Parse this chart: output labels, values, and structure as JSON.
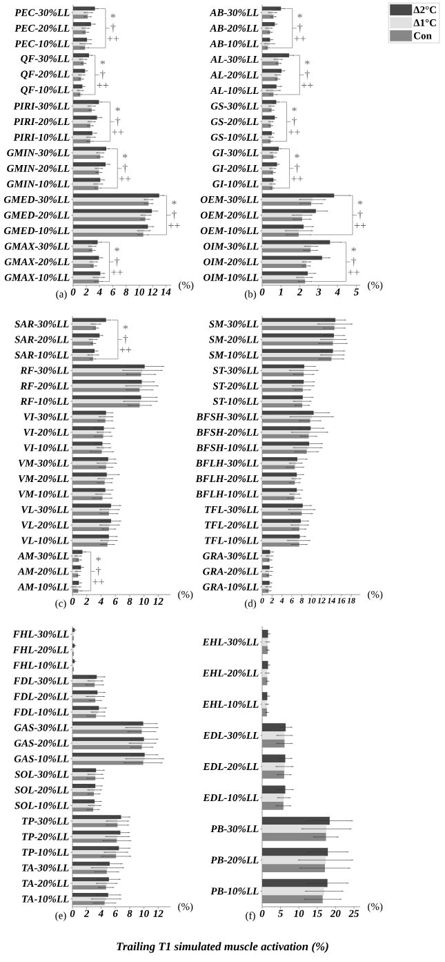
{
  "chart_data": [
    {
      "type": "bar",
      "orientation": "horizontal",
      "title": "(a)",
      "xlabel": "(%)",
      "categories": [
        "PEC-30%LL",
        "PEC-20%LL",
        "PEC-10%LL",
        "QF-30%LL",
        "QF-20%LL",
        "QF-10%LL",
        "PIRI-30%LL",
        "PIRI-20%LL",
        "PIRI-10%LL",
        "GMIN-30%LL",
        "GMIN-20%LL",
        "GMIN-10%LL",
        "GMED-30%LL",
        "GMED-20%LL",
        "GMED-10%LL",
        "GMAX-30%LL",
        "GMAX-20%LL",
        "GMAX-10%LL"
      ],
      "series": [
        {
          "color": "#474747",
          "values": [
            3.3,
            2.7,
            2.1,
            2.4,
            1.8,
            1.4,
            3.9,
            3.6,
            2.9,
            5.0,
            4.9,
            4.1,
            13.0,
            11.9,
            11.3,
            3.7,
            3.9,
            4.1
          ],
          "errors": [
            0.5,
            0.6,
            0.6,
            0.5,
            0.3,
            0.3,
            0.5,
            0.7,
            0.6,
            0.5,
            0.6,
            0.6,
            0.7,
            0.8,
            0.8,
            0.6,
            0.5,
            0.6
          ]
        },
        {
          "color": "#e1e1e1",
          "values": [
            2.3,
            1.9,
            1.9,
            1.5,
            1.3,
            1.1,
            2.8,
            2.8,
            2.7,
            4.1,
            3.9,
            3.8,
            11.4,
            11.0,
            10.7,
            2.9,
            3.1,
            3.9
          ],
          "errors": [
            0.6,
            0.5,
            0.8,
            0.5,
            0.4,
            0.4,
            0.5,
            0.5,
            0.6,
            0.5,
            0.5,
            0.6,
            0.6,
            0.7,
            0.9,
            0.5,
            0.5,
            0.8
          ]
        },
        {
          "color": "#878787",
          "values": [
            2.2,
            1.9,
            1.8,
            1.6,
            1.2,
            1.1,
            2.8,
            2.6,
            2.6,
            4.1,
            3.9,
            3.8,
            11.4,
            10.9,
            10.6,
            2.9,
            3.1,
            3.9
          ],
          "errors": [
            0.5,
            0.4,
            0.6,
            0.3,
            0.3,
            0.3,
            0.4,
            0.4,
            0.5,
            0.4,
            0.4,
            0.5,
            0.6,
            0.6,
            0.8,
            0.4,
            0.4,
            0.6
          ]
        }
      ],
      "xlim": [
        0,
        14.8
      ],
      "xticks": [
        0,
        2,
        4,
        6,
        8,
        10,
        12,
        14
      ],
      "annotations": [
        "*",
        "†",
        "++",
        "*",
        "†",
        "++",
        "*",
        "†",
        "++",
        "*",
        "†",
        "++",
        "*",
        "†",
        "++",
        "*",
        "†",
        "++"
      ]
    },
    {
      "type": "bar",
      "orientation": "horizontal",
      "title": "(b)",
      "xlabel": "(%)",
      "legend": "top right",
      "categories": [
        "AB-30%LL",
        "AB-20%LL",
        "AB-10%LL",
        "AL-30%LL",
        "AL-20%LL",
        "AL-10%LL",
        "GS-30%LL",
        "GS-20%LL",
        "GS-10%LL",
        "GI-30%LL",
        "GI-20%LL",
        "GI-10%LL",
        "OEM-30%LL",
        "OEM-20%LL",
        "OEM-10%LL",
        "OIM-30%LL",
        "OIM-20%LL",
        "OIM-10%LL"
      ],
      "series": [
        {
          "name": "Δ2°C",
          "color": "#474747",
          "values": [
            1.0,
            0.67,
            0.42,
            1.43,
            1.03,
            0.76,
            0.75,
            0.67,
            0.51,
            0.88,
            0.79,
            0.6,
            3.82,
            2.85,
            2.2,
            3.6,
            3.18,
            2.42
          ],
          "errors": [
            0.2,
            0.1,
            0.12,
            0.25,
            0.15,
            0.25,
            0.15,
            0.1,
            0.1,
            0.15,
            0.1,
            0.1,
            0.85,
            0.6,
            0.5,
            0.6,
            0.4,
            0.4
          ]
        },
        {
          "name": "Δ1°C",
          "color": "#e1e1e1",
          "values": [
            0.55,
            0.36,
            0.39,
            0.85,
            0.83,
            0.6,
            0.5,
            0.47,
            0.47,
            0.6,
            0.56,
            0.55,
            2.67,
            2.12,
            1.95,
            2.6,
            2.36,
            2.25
          ],
          "errors": [
            0.2,
            0.15,
            0.25,
            0.2,
            0.12,
            0.35,
            0.12,
            0.1,
            0.1,
            0.15,
            0.14,
            0.12,
            0.67,
            0.5,
            0.7,
            0.33,
            0.2,
            0.4
          ]
        },
        {
          "name": "Con",
          "color": "#878787",
          "values": [
            0.6,
            0.42,
            0.3,
            0.87,
            0.82,
            0.6,
            0.5,
            0.46,
            0.45,
            0.6,
            0.58,
            0.55,
            2.6,
            2.12,
            1.94,
            2.57,
            2.34,
            2.28
          ],
          "errors": [
            0.12,
            0.1,
            0.1,
            0.12,
            0.1,
            0.2,
            0.1,
            0.08,
            0.08,
            0.1,
            0.1,
            0.1,
            0.58,
            0.45,
            0.65,
            0.35,
            0.2,
            0.35
          ]
        }
      ],
      "xlim": [
        0,
        5.2
      ],
      "xticks": [
        0,
        1,
        2,
        3,
        4,
        5
      ],
      "annotations": [
        "*",
        "†",
        "++",
        "*",
        "†",
        "++",
        "*",
        "†",
        "++",
        "*",
        "†",
        "++",
        "*",
        "†",
        "++",
        "*",
        "†",
        "++"
      ]
    },
    {
      "type": "bar",
      "orientation": "horizontal",
      "title": "(c)",
      "xlabel": "(%)",
      "categories": [
        "SAR-30%LL",
        "SAR-20%LL",
        "SAR-10%LL",
        "RF-30%LL",
        "RF-20%LL",
        "RF-10%LL",
        "VI-30%LL",
        "VI-20%LL",
        "VI-10%LL",
        "VM-30%LL",
        "VM-20%LL",
        "VM-10%LL",
        "VL-30%LL",
        "VL-20%LL",
        "VL-10%LL",
        "AM-30%LL",
        "AM-20%LL",
        "AM-10%LL"
      ],
      "series": [
        {
          "color": "#474747",
          "values": [
            4.7,
            3.8,
            3.1,
            10.1,
            9.7,
            9.6,
            4.7,
            4.4,
            4.2,
            5.0,
            4.8,
            4.6,
            5.4,
            5.4,
            5.1,
            1.4,
            1.2,
            0.9
          ],
          "errors": [
            0.6,
            0.4,
            0.4,
            2.6,
            1.7,
            2.2,
            0.9,
            1.4,
            1.0,
            1.0,
            1.7,
            1.0,
            1.3,
            1.3,
            1.1,
            0.4,
            0.3,
            0.3
          ]
        },
        {
          "color": "#e1e1e1",
          "values": [
            3.3,
            2.9,
            2.9,
            9.8,
            9.7,
            9.5,
            4.7,
            4.4,
            4.4,
            4.8,
            4.6,
            4.3,
            5.2,
            5.2,
            5.1,
            0.8,
            0.8,
            0.6
          ],
          "errors": [
            0.6,
            0.5,
            0.7,
            2.7,
            2.2,
            2.3,
            0.9,
            0.9,
            0.9,
            1.3,
            1.0,
            1.0,
            1.3,
            1.3,
            1.1,
            0.4,
            0.3,
            0.5
          ]
        },
        {
          "color": "#878787",
          "values": [
            3.3,
            2.9,
            2.9,
            9.6,
            9.4,
            9.4,
            4.6,
            4.3,
            4.1,
            4.7,
            4.5,
            4.2,
            5.1,
            5.1,
            4.9,
            0.9,
            0.8,
            0.8
          ],
          "errors": [
            0.3,
            0.3,
            0.4,
            2.0,
            1.8,
            1.6,
            1.0,
            1.2,
            1.6,
            0.9,
            1.0,
            1.3,
            1.2,
            0.9,
            0.9,
            0.3,
            0.2,
            0.5
          ]
        }
      ],
      "xlim": [
        0,
        13.7
      ],
      "xticks": [
        0,
        2,
        4,
        6,
        8,
        10,
        12
      ],
      "annotations": [
        "*",
        "†",
        "++",
        {
          "text": "*",
          "x": 1.4,
          "y": "AM-30%LL"
        },
        "†",
        {
          "text": "++",
          "x": 0.8,
          "y": "AM-10%LL"
        }
      ]
    },
    {
      "type": "bar",
      "orientation": "horizontal",
      "title": "(d)",
      "xlabel": "(%)",
      "categories": [
        "SM-30%LL",
        "SM-20%LL",
        "SM-10%LL",
        "ST-30%LL",
        "ST-20%LL",
        "ST-10%LL",
        "BFSH-30%LL",
        "BFSH-20%LL",
        "BFSH-10%LL",
        "BFLH-30%LL",
        "BFLH-20%LL",
        "BFLH-10%LL",
        "TFL-30%LL",
        "TFL-20%LL",
        "TFL-10%LL",
        "GRA-30%LL",
        "GRA-20%LL",
        "GRA-10%LL"
      ],
      "series": [
        {
          "color": "#474747",
          "values": [
            14.8,
            14.5,
            14.3,
            8.5,
            8.4,
            8.2,
            10.4,
            9.8,
            9.5,
            7.1,
            7.0,
            7.0,
            8.2,
            7.8,
            7.6,
            1.6,
            1.5,
            1.5
          ],
          "errors": [
            2.0,
            2.1,
            2.3,
            2.2,
            2.1,
            2.0,
            3.1,
            2.6,
            2.6,
            1.9,
            1.3,
            1.1,
            1.7,
            1.5,
            1.1,
            0.6,
            0.5,
            0.4
          ]
        },
        {
          "color": "#e1e1e1",
          "values": [
            14.7,
            14.4,
            14.2,
            8.4,
            8.3,
            8.1,
            10.0,
            9.6,
            9.2,
            6.8,
            6.9,
            6.6,
            8.0,
            7.6,
            7.4,
            1.5,
            1.4,
            1.3
          ],
          "errors": [
            3.4,
            2.5,
            2.3,
            2.8,
            2.1,
            1.7,
            4.3,
            3.6,
            2.8,
            1.2,
            0.8,
            0.9,
            2.6,
            1.7,
            2.2,
            0.6,
            0.6,
            0.5
          ]
        },
        {
          "color": "#878787",
          "values": [
            14.6,
            14.3,
            14.0,
            8.4,
            8.2,
            8.1,
            9.7,
            9.4,
            9.0,
            6.6,
            6.6,
            6.5,
            8.0,
            7.5,
            7.5,
            1.5,
            1.4,
            1.3
          ],
          "errors": [
            2.1,
            2.8,
            2.4,
            2.0,
            1.5,
            1.4,
            2.1,
            1.6,
            2.3,
            1.7,
            1.0,
            1.3,
            2.1,
            1.3,
            1.5,
            0.4,
            0.4,
            0.4
          ]
        }
      ],
      "xlim": [
        0,
        19.8
      ],
      "xticks": [
        0,
        2,
        4,
        6,
        8,
        10,
        12,
        14,
        16,
        18
      ]
    },
    {
      "type": "bar",
      "orientation": "horizontal",
      "title": "(e)",
      "xlabel": "(%)",
      "categories": [
        "FHL-30%LL",
        "FHL-20%LL",
        "FHL-10%LL",
        "FDL-30%LL",
        "FDL-20%LL",
        "FDL-10%LL",
        "GAS-30%LL",
        "GAS-20%LL",
        "GAS-10%LL",
        "SOL-30%LL",
        "SOL-20%LL",
        "SOL-10%LL",
        "TP-30%LL",
        "TP-20%LL",
        "TP-10%LL",
        "TA-30%LL",
        "TA-20%LL",
        "TA-10%LL"
      ],
      "series": [
        {
          "color": "#474747",
          "values": [
            0.3,
            0.3,
            0.3,
            3.4,
            3.5,
            3.7,
            9.9,
            10.0,
            10.1,
            3.3,
            3.2,
            3.1,
            6.8,
            6.7,
            6.5,
            5.2,
            5.1,
            5.0
          ],
          "errors": [
            0.1,
            0.1,
            0.1,
            1.1,
            1.0,
            1.0,
            1.9,
            1.9,
            1.8,
            1.1,
            0.9,
            0.9,
            1.2,
            1.2,
            1.5,
            1.7,
            1.5,
            1.7
          ]
        },
        {
          "color": "#e1e1e1",
          "values": [
            0.2,
            0.2,
            0.2,
            3.2,
            3.2,
            3.6,
            9.7,
            9.8,
            10.1,
            3.2,
            3.1,
            3.1,
            6.3,
            6.3,
            6.1,
            4.9,
            4.8,
            4.7
          ],
          "errors": [
            null,
            null,
            null,
            1.0,
            1.2,
            0.9,
            2.2,
            1.8,
            2.6,
            1.0,
            0.9,
            0.8,
            1.5,
            1.6,
            1.6,
            2.2,
            1.4,
            2.0
          ]
        },
        {
          "color": "#878787",
          "values": [
            0.2,
            0.2,
            0.2,
            3.1,
            3.2,
            3.3,
            9.7,
            9.7,
            9.9,
            3.2,
            3.0,
            2.9,
            6.3,
            6.2,
            6.1,
            4.8,
            4.7,
            4.5
          ],
          "errors": [
            null,
            null,
            null,
            1.2,
            0.8,
            1.2,
            1.9,
            1.5,
            2.6,
            1.1,
            0.8,
            0.8,
            1.5,
            1.9,
            2.0,
            1.6,
            1.0,
            1.5
          ]
        }
      ],
      "xlim": [
        0,
        13.7
      ],
      "xticks": [
        0,
        2,
        4,
        6,
        8,
        10,
        12
      ]
    },
    {
      "type": "bar",
      "orientation": "horizontal",
      "title": "(f)",
      "xlabel": "(%)",
      "categories": [
        "EHL-30%LL",
        "EHL-20%LL",
        "EHL-10%LL",
        "EDL-30%LL",
        "EDL-20%LL",
        "EDL-10%LL",
        "PB-30%LL",
        "PB-20%LL",
        "PB-10%LL"
      ],
      "series": [
        {
          "color": "#474747",
          "values": [
            1.6,
            1.6,
            1.4,
            6.4,
            6.3,
            6.3,
            18.4,
            17.9,
            17.8
          ],
          "errors": [
            0.4,
            0.4,
            0.5,
            1.6,
            1.7,
            2.1,
            6.1,
            5.4,
            5.5
          ]
        },
        {
          "color": "#e1e1e1",
          "values": [
            1.5,
            1.4,
            1.3,
            6.1,
            6.1,
            5.9,
            17.5,
            17.3,
            16.9
          ],
          "errors": [
            0.4,
            0.4,
            0.3,
            2.0,
            2.2,
            1.6,
            6.6,
            7.3,
            5.0
          ]
        },
        {
          "color": "#878787",
          "values": [
            1.5,
            1.4,
            1.3,
            6.1,
            6.0,
            5.8,
            17.4,
            17.1,
            16.5
          ],
          "errors": [
            0.3,
            0.3,
            0.3,
            2.0,
            1.8,
            1.9,
            3.2,
            6.7,
            4.9
          ]
        }
      ],
      "xlim": [
        0,
        26.7
      ],
      "xticks": [
        0,
        5,
        10,
        15,
        20,
        25
      ],
      "annotations": [
        "Trailing T1 simulated muscle activation (%)"
      ]
    }
  ]
}
